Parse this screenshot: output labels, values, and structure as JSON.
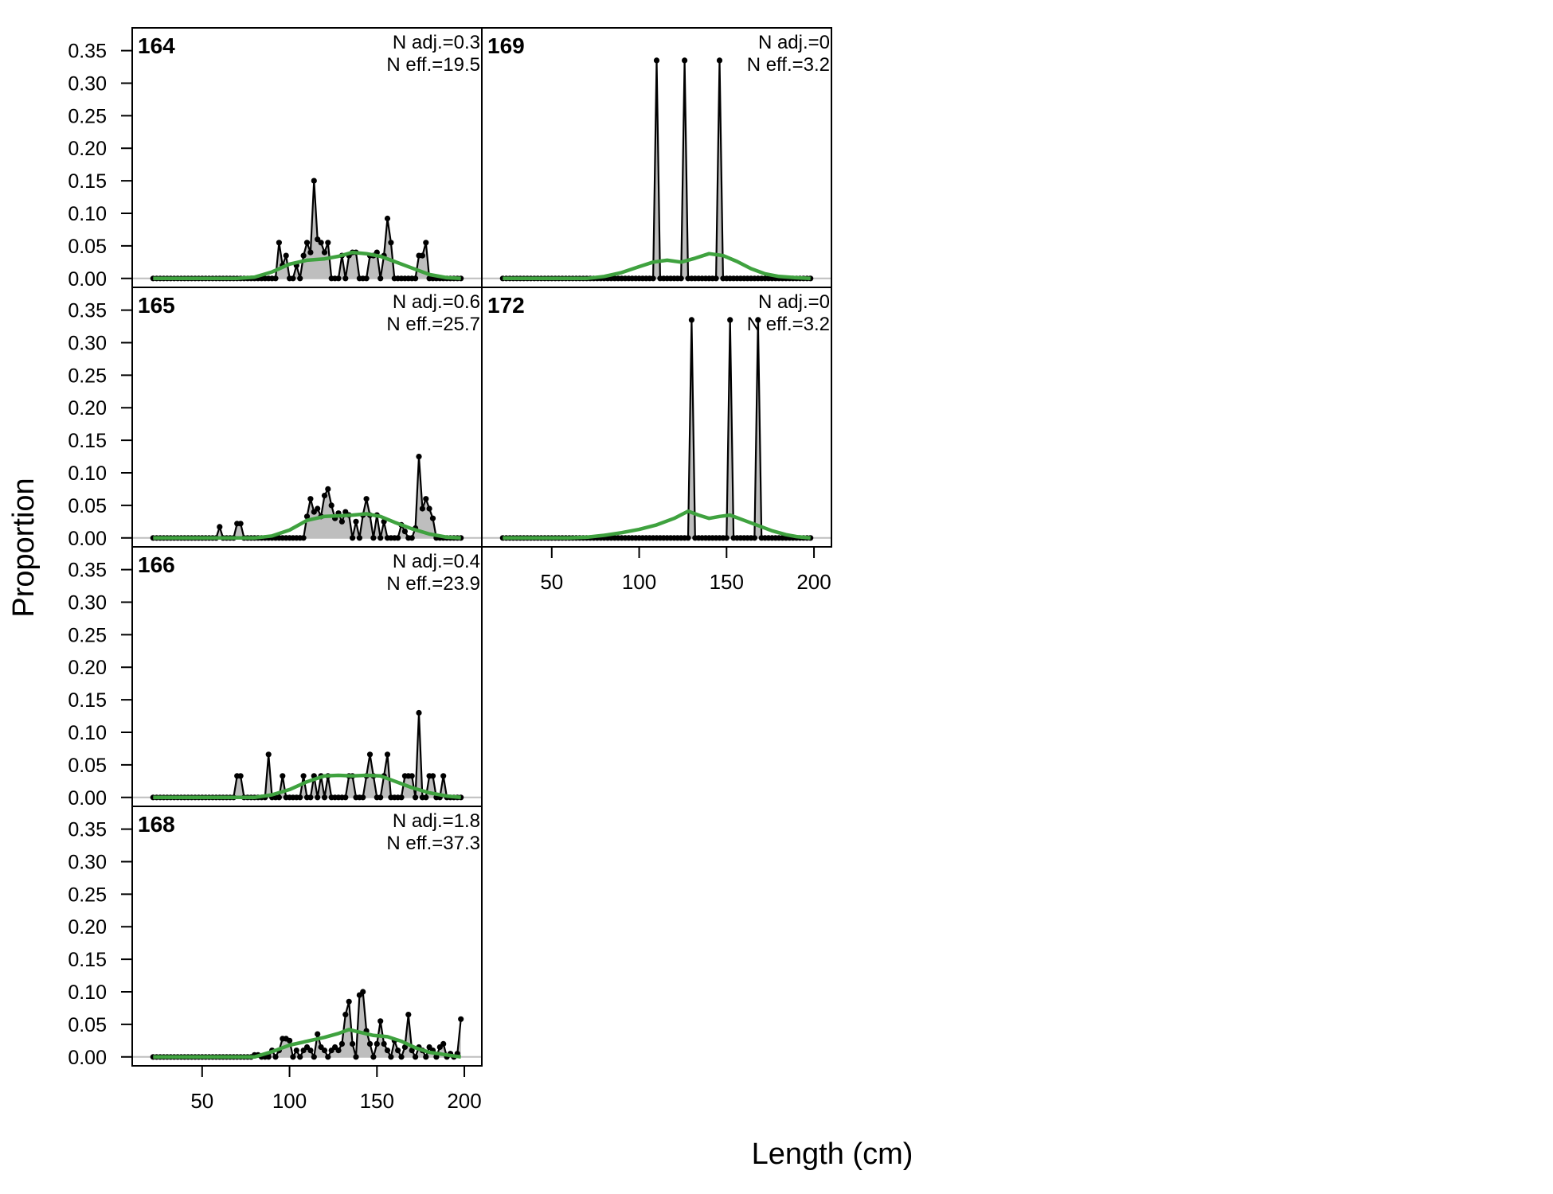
{
  "chart_data": {
    "type": "area",
    "xlabel": "Length (cm)",
    "ylabel": "Proportion",
    "xlim": [
      10,
      210
    ],
    "ylim": [
      -0.01375,
      0.385
    ],
    "x_ticks": [
      50,
      100,
      150,
      200
    ],
    "y_ticks": [
      0.0,
      0.05,
      0.1,
      0.15,
      0.2,
      0.25,
      0.3,
      0.35
    ],
    "y_tick_labels": [
      "0.00",
      "0.05",
      "0.10",
      "0.15",
      "0.20",
      "0.25",
      "0.30",
      "0.35"
    ],
    "x_bins": {
      "start": 22,
      "end": 198,
      "step": 2
    },
    "colors": {
      "observed_fill": "#bebebe",
      "observed_line": "#000000",
      "expected": "#3fa23f",
      "zero_line": "#bebebe"
    },
    "panels": [
      {
        "year": "164",
        "nadj": "N adj.=0.3",
        "neff": "N eff.=19.5",
        "observed": [
          [
            94,
            0.055
          ],
          [
            96,
            0.02
          ],
          [
            98,
            0.035
          ],
          [
            104,
            0.02
          ],
          [
            108,
            0.035
          ],
          [
            110,
            0.055
          ],
          [
            112,
            0.04
          ],
          [
            114,
            0.15
          ],
          [
            116,
            0.06
          ],
          [
            118,
            0.055
          ],
          [
            120,
            0.04
          ],
          [
            122,
            0.055
          ],
          [
            130,
            0.035
          ],
          [
            134,
            0.035
          ],
          [
            136,
            0.04
          ],
          [
            138,
            0.04
          ],
          [
            146,
            0.035
          ],
          [
            148,
            0.035
          ],
          [
            150,
            0.04
          ],
          [
            154,
            0.035
          ],
          [
            156,
            0.092
          ],
          [
            158,
            0.055
          ],
          [
            174,
            0.035
          ],
          [
            176,
            0.035
          ],
          [
            178,
            0.055
          ]
        ],
        "expected": [
          [
            22,
            0
          ],
          [
            70,
            0
          ],
          [
            80,
            0.002
          ],
          [
            90,
            0.01
          ],
          [
            100,
            0.022
          ],
          [
            110,
            0.028
          ],
          [
            120,
            0.03
          ],
          [
            128,
            0.034
          ],
          [
            136,
            0.04
          ],
          [
            144,
            0.038
          ],
          [
            152,
            0.034
          ],
          [
            160,
            0.026
          ],
          [
            170,
            0.016
          ],
          [
            180,
            0.006
          ],
          [
            190,
            0.001
          ],
          [
            198,
            0
          ]
        ]
      },
      {
        "year": "165",
        "nadj": "N adj.=0.6",
        "neff": "N eff.=25.7",
        "observed": [
          [
            60,
            0.017
          ],
          [
            70,
            0.022
          ],
          [
            72,
            0.022
          ],
          [
            110,
            0.033
          ],
          [
            112,
            0.06
          ],
          [
            114,
            0.04
          ],
          [
            116,
            0.045
          ],
          [
            118,
            0.033
          ],
          [
            120,
            0.065
          ],
          [
            122,
            0.075
          ],
          [
            124,
            0.05
          ],
          [
            126,
            0.03
          ],
          [
            128,
            0.038
          ],
          [
            130,
            0.025
          ],
          [
            132,
            0.04
          ],
          [
            134,
            0.035
          ],
          [
            138,
            0.025
          ],
          [
            142,
            0.035
          ],
          [
            144,
            0.06
          ],
          [
            146,
            0.035
          ],
          [
            150,
            0.035
          ],
          [
            154,
            0.025
          ],
          [
            164,
            0.02
          ],
          [
            166,
            0.01
          ],
          [
            172,
            0.015
          ],
          [
            174,
            0.125
          ],
          [
            176,
            0.045
          ],
          [
            178,
            0.06
          ],
          [
            180,
            0.045
          ],
          [
            182,
            0.03
          ]
        ],
        "expected": [
          [
            22,
            0
          ],
          [
            80,
            0
          ],
          [
            90,
            0.003
          ],
          [
            100,
            0.012
          ],
          [
            110,
            0.027
          ],
          [
            120,
            0.033
          ],
          [
            128,
            0.034
          ],
          [
            136,
            0.035
          ],
          [
            144,
            0.037
          ],
          [
            152,
            0.033
          ],
          [
            160,
            0.024
          ],
          [
            170,
            0.014
          ],
          [
            180,
            0.006
          ],
          [
            190,
            0.001
          ],
          [
            198,
            0
          ]
        ]
      },
      {
        "year": "166",
        "nadj": "N adj.=0.4",
        "neff": "N eff.=23.9",
        "observed": [
          [
            70,
            0.033
          ],
          [
            72,
            0.033
          ],
          [
            88,
            0.066
          ],
          [
            96,
            0.033
          ],
          [
            108,
            0.033
          ],
          [
            114,
            0.033
          ],
          [
            118,
            0.033
          ],
          [
            122,
            0.033
          ],
          [
            134,
            0.033
          ],
          [
            136,
            0.033
          ],
          [
            144,
            0.033
          ],
          [
            146,
            0.066
          ],
          [
            148,
            0.033
          ],
          [
            154,
            0.033
          ],
          [
            156,
            0.066
          ],
          [
            166,
            0.033
          ],
          [
            168,
            0.033
          ],
          [
            170,
            0.033
          ],
          [
            174,
            0.13
          ],
          [
            180,
            0.033
          ],
          [
            182,
            0.033
          ],
          [
            188,
            0.033
          ]
        ],
        "expected": [
          [
            22,
            0
          ],
          [
            80,
            0
          ],
          [
            90,
            0.004
          ],
          [
            100,
            0.012
          ],
          [
            110,
            0.024
          ],
          [
            120,
            0.033
          ],
          [
            128,
            0.034
          ],
          [
            136,
            0.033
          ],
          [
            144,
            0.034
          ],
          [
            152,
            0.033
          ],
          [
            160,
            0.025
          ],
          [
            170,
            0.015
          ],
          [
            180,
            0.007
          ],
          [
            190,
            0.002
          ],
          [
            198,
            0
          ]
        ]
      },
      {
        "year": "168",
        "nadj": "N adj.=1.8",
        "neff": "N eff.=37.3",
        "observed": [
          [
            80,
            0.003
          ],
          [
            82,
            0.003
          ],
          [
            90,
            0.01
          ],
          [
            94,
            0.01
          ],
          [
            96,
            0.028
          ],
          [
            98,
            0.028
          ],
          [
            100,
            0.025
          ],
          [
            104,
            0.01
          ],
          [
            108,
            0.01
          ],
          [
            110,
            0.015
          ],
          [
            112,
            0.01
          ],
          [
            116,
            0.035
          ],
          [
            118,
            0.015
          ],
          [
            120,
            0.01
          ],
          [
            124,
            0.01
          ],
          [
            126,
            0.015
          ],
          [
            128,
            0.01
          ],
          [
            130,
            0.02
          ],
          [
            132,
            0.065
          ],
          [
            134,
            0.085
          ],
          [
            136,
            0.02
          ],
          [
            140,
            0.095
          ],
          [
            142,
            0.1
          ],
          [
            144,
            0.04
          ],
          [
            146,
            0.02
          ],
          [
            150,
            0.02
          ],
          [
            152,
            0.055
          ],
          [
            154,
            0.02
          ],
          [
            156,
            0.01
          ],
          [
            160,
            0.025
          ],
          [
            162,
            0.01
          ],
          [
            166,
            0.015
          ],
          [
            168,
            0.065
          ],
          [
            170,
            0.01
          ],
          [
            174,
            0.015
          ],
          [
            176,
            0.01
          ],
          [
            180,
            0.015
          ],
          [
            182,
            0.01
          ],
          [
            186,
            0.015
          ],
          [
            188,
            0.02
          ],
          [
            192,
            0.005
          ],
          [
            196,
            0.005
          ],
          [
            198,
            0.058
          ]
        ],
        "expected": [
          [
            22,
            0
          ],
          [
            80,
            0
          ],
          [
            90,
            0.008
          ],
          [
            100,
            0.018
          ],
          [
            110,
            0.024
          ],
          [
            120,
            0.03
          ],
          [
            128,
            0.036
          ],
          [
            134,
            0.042
          ],
          [
            140,
            0.038
          ],
          [
            148,
            0.033
          ],
          [
            156,
            0.031
          ],
          [
            164,
            0.024
          ],
          [
            172,
            0.014
          ],
          [
            180,
            0.007
          ],
          [
            190,
            0.003
          ],
          [
            198,
            0
          ]
        ]
      },
      {
        "year": "169",
        "nadj": "N adj.=0",
        "neff": "N eff.=3.2",
        "observed": [
          [
            110,
            0.335
          ],
          [
            126,
            0.335
          ],
          [
            146,
            0.335
          ]
        ],
        "expected": [
          [
            22,
            0
          ],
          [
            70,
            0
          ],
          [
            80,
            0.003
          ],
          [
            90,
            0.009
          ],
          [
            100,
            0.018
          ],
          [
            108,
            0.025
          ],
          [
            116,
            0.028
          ],
          [
            124,
            0.025
          ],
          [
            132,
            0.031
          ],
          [
            140,
            0.038
          ],
          [
            148,
            0.035
          ],
          [
            156,
            0.026
          ],
          [
            164,
            0.015
          ],
          [
            172,
            0.007
          ],
          [
            180,
            0.003
          ],
          [
            190,
            0.001
          ],
          [
            198,
            0
          ]
        ]
      },
      {
        "year": "172",
        "nadj": "N adj.=0",
        "neff": "N eff.=3.2",
        "observed": [
          [
            130,
            0.335
          ],
          [
            152,
            0.335
          ],
          [
            168,
            0.335
          ]
        ],
        "expected": [
          [
            22,
            0
          ],
          [
            60,
            0
          ],
          [
            70,
            0.001
          ],
          [
            80,
            0.004
          ],
          [
            90,
            0.008
          ],
          [
            100,
            0.013
          ],
          [
            110,
            0.02
          ],
          [
            120,
            0.03
          ],
          [
            128,
            0.041
          ],
          [
            134,
            0.035
          ],
          [
            140,
            0.03
          ],
          [
            146,
            0.033
          ],
          [
            152,
            0.035
          ],
          [
            160,
            0.027
          ],
          [
            168,
            0.019
          ],
          [
            176,
            0.011
          ],
          [
            184,
            0.005
          ],
          [
            190,
            0.002
          ],
          [
            198,
            0
          ]
        ]
      }
    ]
  }
}
